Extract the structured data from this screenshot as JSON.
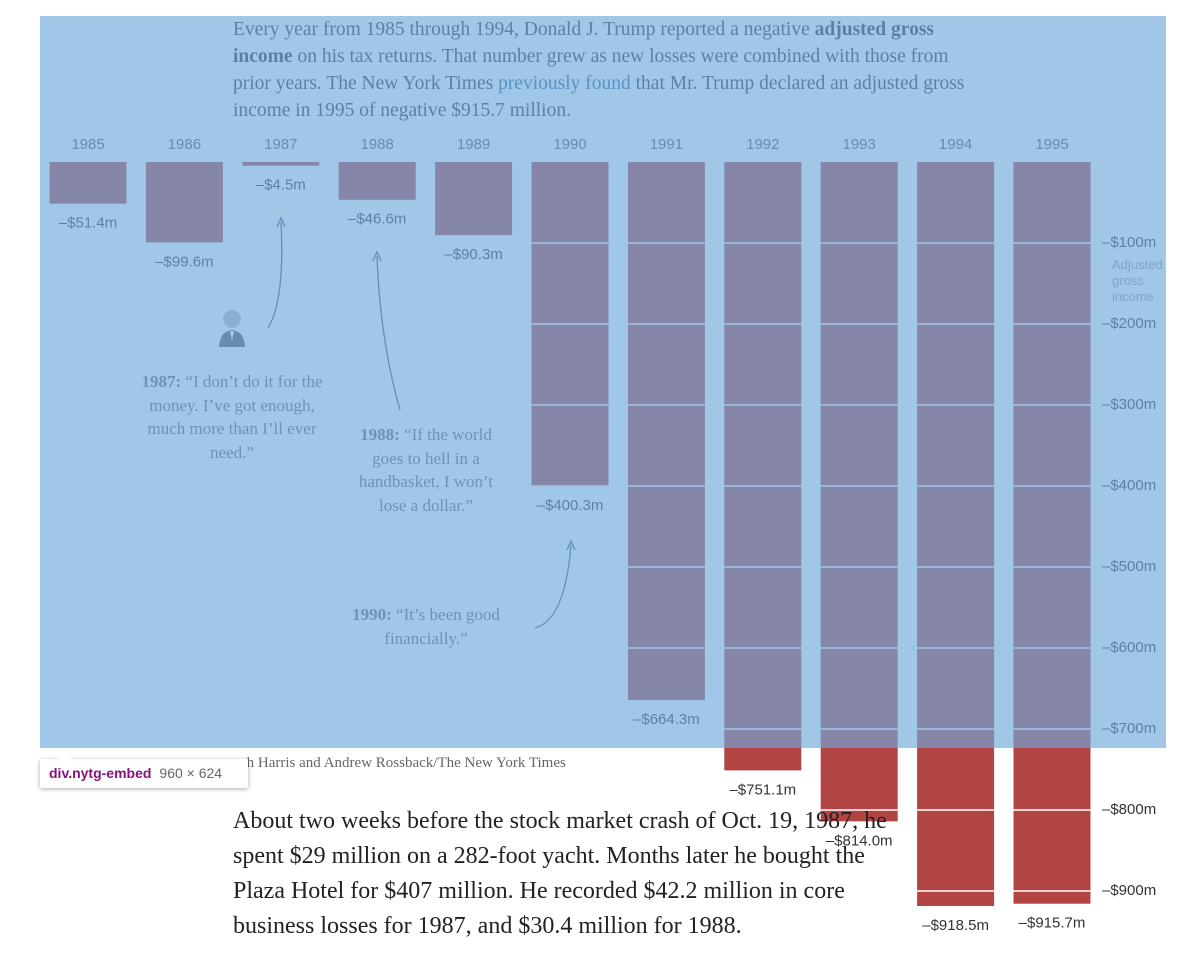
{
  "intro": [
    "Every year from 1985 through 1994, Donald J. Trump reported a negative ",
    "adjusted gross income",
    " on his tax returns. That number grew as new losses were combined with those from prior years. The New York Times ",
    "previously found",
    " that Mr. Trump declared an adjusted gross income in 1995 of negative $915.7 million."
  ],
  "chart_data": {
    "type": "bar",
    "categories": [
      "1985",
      "1986",
      "1987",
      "1988",
      "1989",
      "1990",
      "1991",
      "1992",
      "1993",
      "1994",
      "1995"
    ],
    "values": [
      -51.4,
      -99.6,
      -4.5,
      -46.6,
      -90.3,
      -400.3,
      -664.3,
      -751.1,
      -814.0,
      -918.5,
      -915.7
    ],
    "value_labels": [
      "–$51.4m",
      "–$99.6m",
      "–$4.5m",
      "–$46.6m",
      "–$90.3m",
      "–$400.3m",
      "–$664.3m",
      "–$751.1m",
      "–$814.0m",
      "–$918.5m",
      "–$915.7m"
    ],
    "color": "#b34444",
    "ylim": [
      -950,
      0
    ],
    "yticks": [
      {
        "value": -100,
        "label": "–$100m"
      },
      {
        "value": -200,
        "label": "–$200m"
      },
      {
        "value": -300,
        "label": "–$300m"
      },
      {
        "value": -400,
        "label": "–$400m"
      },
      {
        "value": -500,
        "label": "–$500m"
      },
      {
        "value": -600,
        "label": "–$600m"
      },
      {
        "value": -700,
        "label": "–$700m"
      },
      {
        "value": -800,
        "label": "–$800m"
      },
      {
        "value": -900,
        "label": "–$900m"
      }
    ],
    "y_label": "Adjusted gross income",
    "grid": true
  },
  "annotations": [
    {
      "year": "1987:",
      "quote": " “I don’t do it for the money. I’ve got enough, much more than I’ll ever need.”"
    },
    {
      "year": "1988:",
      "quote": " “If the world goes to hell in a handbasket, I won’t lose a dollar.”"
    },
    {
      "year": "1990:",
      "quote": " “It’s been good financially.”"
    }
  ],
  "credit": "ch Harris and Andrew Rossback/The New York Times",
  "inspector": {
    "selector": "div.nytg-embed",
    "size": "960 × 624"
  },
  "body": [
    "About two weeks before the stock market crash of Oct. 19, 1987, he",
    "spent $29 million on a 282-foot yacht. Months later he bought the",
    "Plaza Hotel for $407 million. He recorded $42.2 million in core",
    "business losses for 1987, and $30.4 million for 1988."
  ]
}
